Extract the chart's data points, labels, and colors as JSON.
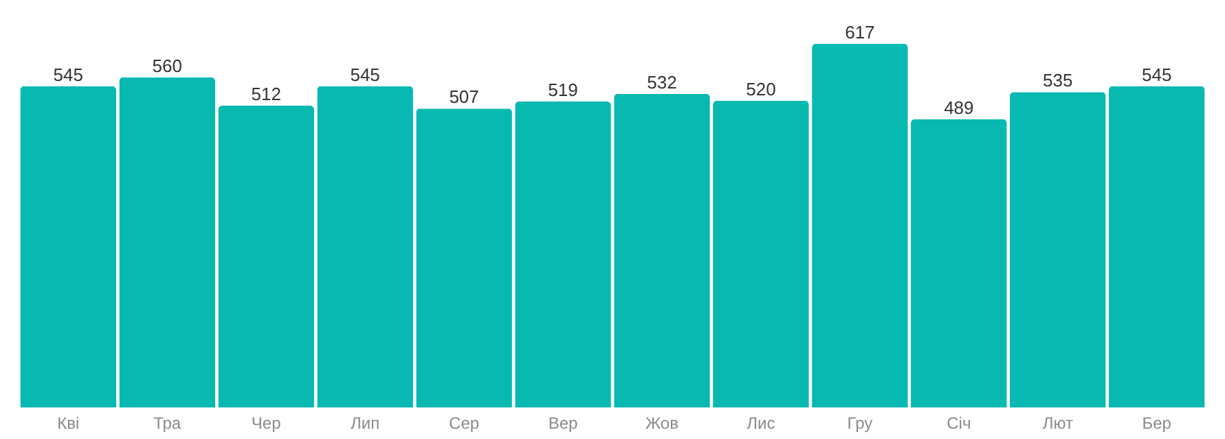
{
  "chart_data": {
    "type": "bar",
    "categories": [
      "Кві",
      "Тра",
      "Чер",
      "Лип",
      "Сер",
      "Вер",
      "Жов",
      "Лис",
      "Гру",
      "Січ",
      "Лют",
      "Бер"
    ],
    "values": [
      545,
      560,
      512,
      545,
      507,
      519,
      532,
      520,
      617,
      489,
      535,
      545
    ],
    "color": "#08b9b1",
    "data_labels": true
  }
}
